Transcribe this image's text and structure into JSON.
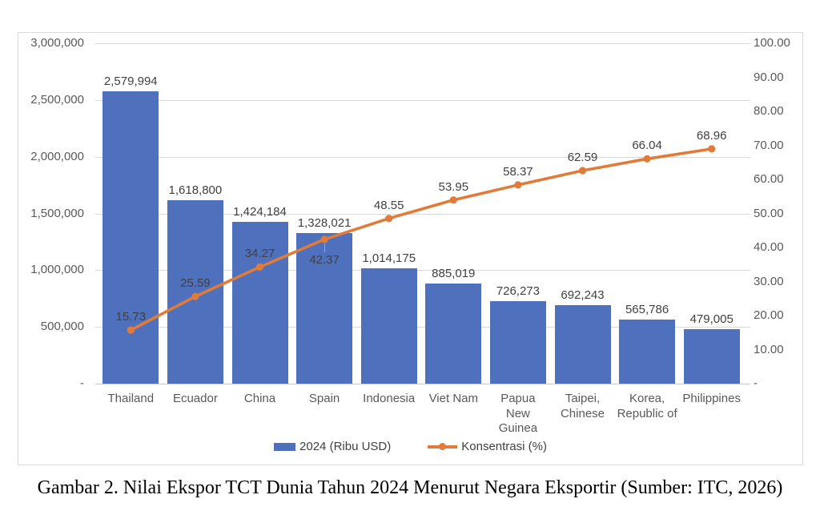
{
  "caption": "Gambar 2. Nilai Ekspor TCT Dunia Tahun 2024 Menurut Negara Eksportir (Sumber: ITC, 2026)",
  "chart_data": {
    "type": "combo-bar-line-pareto",
    "title": "Gambar 2. Nilai Ekspor TCT Dunia Tahun 2024 Menurut Negara Eksportir (Sumber: ITC, 2026)",
    "categories": [
      "Thailand",
      "Ecuador",
      "China",
      "Spain",
      "Indonesia",
      "Viet Nam",
      "Papua New Guinea",
      "Taipei, Chinese",
      "Korea, Republic of",
      "Philippines"
    ],
    "categories_multiline": [
      [
        "Thailand"
      ],
      [
        "Ecuador"
      ],
      [
        "China"
      ],
      [
        "Spain"
      ],
      [
        "Indonesia"
      ],
      [
        "Viet Nam"
      ],
      [
        "Papua",
        "New",
        "Guinea"
      ],
      [
        "Taipei,",
        "Chinese"
      ],
      [
        "Korea,",
        "Republic of"
      ],
      [
        "Philippines"
      ]
    ],
    "series": [
      {
        "name": "2024 (Ribu USD)",
        "type": "bar",
        "axis": "left",
        "color": "#4F71BD",
        "values": [
          2579994,
          1618800,
          1424184,
          1328021,
          1014175,
          885019,
          726273,
          692243,
          565786,
          479005
        ],
        "labels": [
          "2,579,994",
          "1,618,800",
          "1,424,184",
          "1,328,021",
          "1,014,175",
          "885,019",
          "726,273",
          "692,243",
          "565,786",
          "479,005"
        ]
      },
      {
        "name": "Konsentrasi (%)",
        "type": "line",
        "axis": "right",
        "color": "#E07B39",
        "values": [
          15.73,
          25.59,
          34.27,
          42.37,
          48.55,
          53.95,
          58.37,
          62.59,
          66.04,
          68.96
        ],
        "labels": [
          "15.73",
          "25.59",
          "34.27",
          "42.37",
          "48.55",
          "53.95",
          "58.37",
          "62.59",
          "66.04",
          "68.96"
        ]
      }
    ],
    "left_axis": {
      "min": 0,
      "max": 3000000,
      "ticks": [
        "3,000,000",
        "2,500,000",
        "2,000,000",
        "1,500,000",
        "1,000,000",
        "500,000",
        "-"
      ]
    },
    "right_axis": {
      "min": 0,
      "max": 100,
      "ticks": [
        "100.00",
        "90.00",
        "80.00",
        "70.00",
        "60.00",
        "50.00",
        "40.00",
        "30.00",
        "20.00",
        "10.00",
        "-"
      ]
    },
    "grid": true,
    "legend_position": "bottom",
    "legend": [
      {
        "label": "2024 (Ribu USD)",
        "swatch": "bar",
        "color": "#4F71BD"
      },
      {
        "label": "Konsentrasi (%)",
        "swatch": "line",
        "color": "#E07B39"
      }
    ],
    "colors": {
      "bar": "#4F71BD",
      "line": "#E07B39",
      "gridline": "#D9D9D9",
      "axis_text": "#595959",
      "data_label_text": "#404040"
    }
  }
}
